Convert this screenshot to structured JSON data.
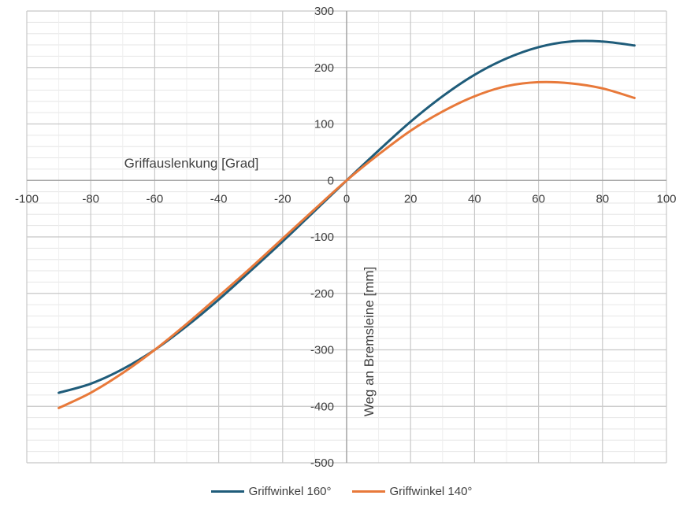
{
  "chart_data": {
    "type": "line",
    "xlabel": "Griffauslenkung [Grad]",
    "ylabel": "Weg an Bremsleine [mm]",
    "xlim": [
      -100,
      100
    ],
    "ylim": [
      -500,
      300
    ],
    "xticks": [
      -100,
      -80,
      -60,
      -40,
      -20,
      0,
      20,
      40,
      60,
      80,
      100
    ],
    "yticks": [
      -500,
      -400,
      -300,
      -200,
      -100,
      0,
      100,
      200,
      300
    ],
    "grid": "on",
    "legend_position": "bottom",
    "series": [
      {
        "name": "Griffwinkel 160°",
        "color": "#1f5c7a",
        "x": [
          -90,
          -80,
          -70,
          -60,
          -50,
          -40,
          -30,
          -20,
          -10,
          0,
          10,
          20,
          30,
          40,
          50,
          60,
          70,
          80,
          90
        ],
        "y": [
          -376,
          -360,
          -334,
          -300,
          -258,
          -211,
          -160,
          -108,
          -54,
          0,
          53,
          104,
          149,
          187,
          216,
          236,
          246,
          246,
          239
        ]
      },
      {
        "name": "Griffwinkel 140°",
        "color": "#e8793a",
        "x": [
          -90,
          -80,
          -70,
          -60,
          -50,
          -40,
          -30,
          -20,
          -10,
          0,
          10,
          20,
          30,
          40,
          50,
          60,
          70,
          80,
          90
        ],
        "y": [
          -403,
          -376,
          -341,
          -300,
          -254,
          -205,
          -155,
          -103,
          -51,
          0,
          46,
          88,
          122,
          149,
          167,
          174,
          172,
          163,
          146
        ]
      }
    ]
  }
}
